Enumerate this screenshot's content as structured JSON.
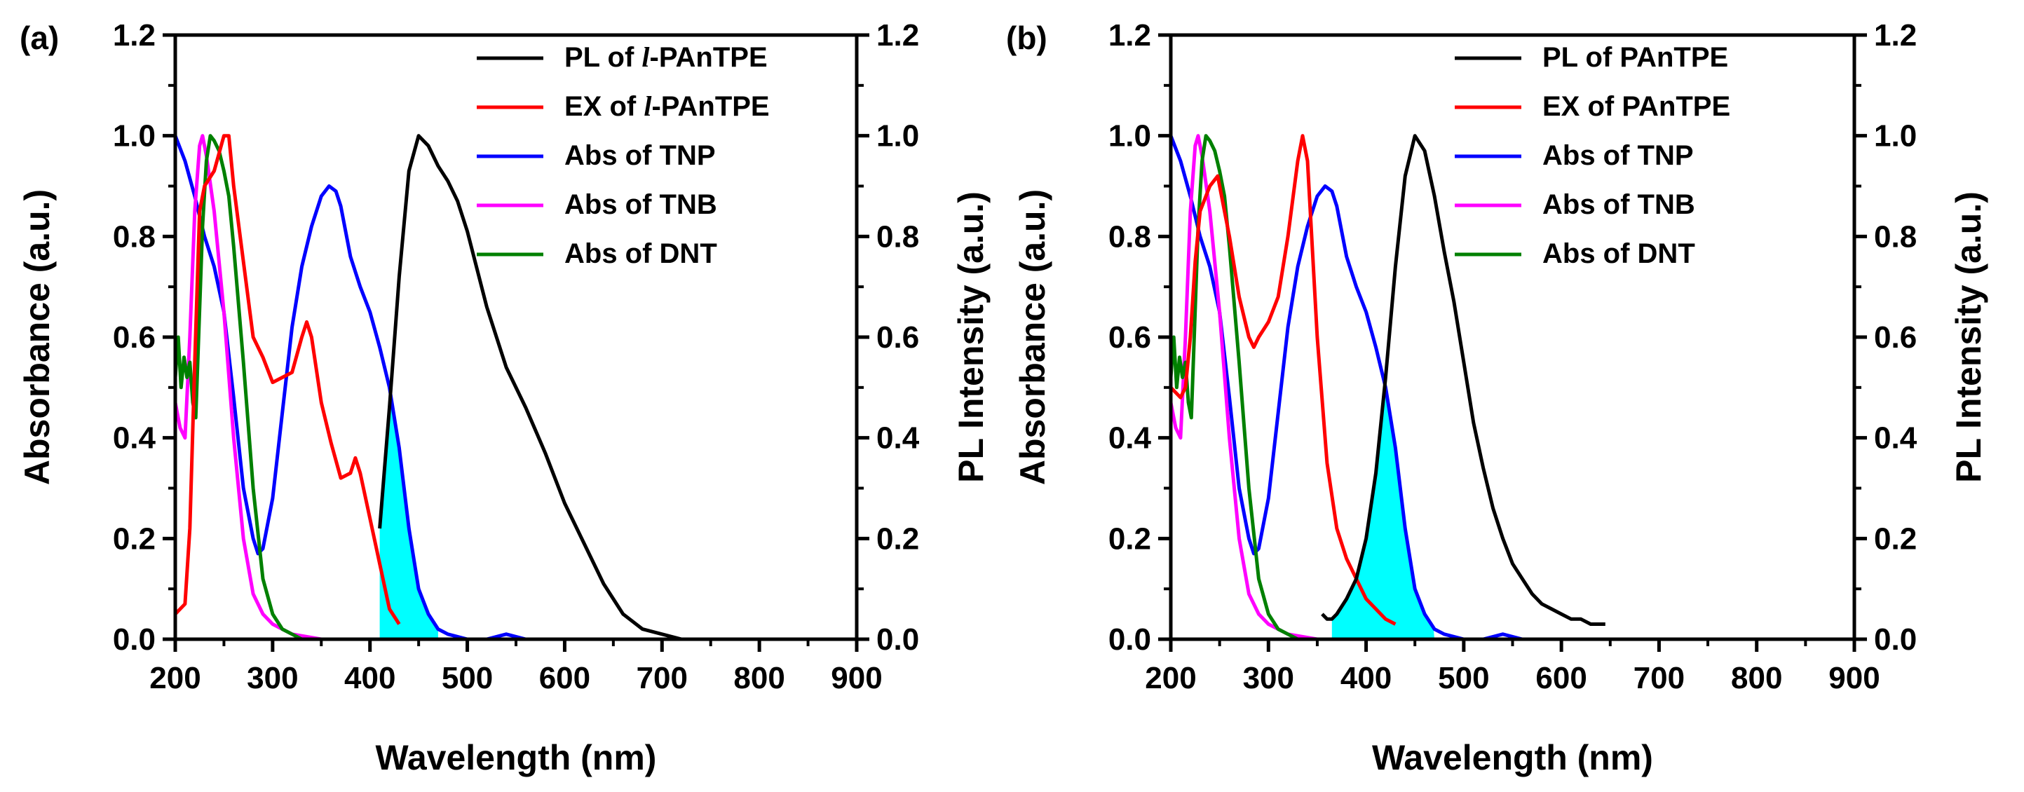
{
  "chart_data": [
    {
      "panel_label": "(a)",
      "type": "line",
      "xlabel": "Wavelength (nm)",
      "ylabel_left": "Absorbance (a.u.)",
      "ylabel_right": "PL Intensity (a.u.)",
      "xlim": [
        200,
        900
      ],
      "ylim": [
        0.0,
        1.2
      ],
      "x_ticks": [
        "200",
        "300",
        "400",
        "500",
        "600",
        "700",
        "800",
        "900"
      ],
      "y_ticks": [
        "0.0",
        "0.2",
        "0.4",
        "0.6",
        "0.8",
        "1.0",
        "1.2"
      ],
      "legend": [
        {
          "prefix": "PL of ",
          "italic": "l",
          "suffix": "-PAnTPE",
          "color": "#000000"
        },
        {
          "prefix": "EX of ",
          "italic": "l",
          "suffix": "-PAnTPE",
          "color": "#ff0000"
        },
        {
          "prefix": "Abs of TNP",
          "italic": "",
          "suffix": "",
          "color": "#0000ff"
        },
        {
          "prefix": "Abs of TNB",
          "italic": "",
          "suffix": "",
          "color": "#ff00ff"
        },
        {
          "prefix": "Abs of DNT",
          "italic": "",
          "suffix": "",
          "color": "#008000"
        }
      ],
      "overlap_fill": {
        "color": "#00ffff",
        "x_range": [
          410,
          470
        ]
      },
      "series": [
        {
          "name": "PL of l-PAnTPE",
          "color": "#000000",
          "x": [
            410,
            420,
            430,
            440,
            450,
            460,
            470,
            480,
            490,
            500,
            520,
            540,
            560,
            580,
            600,
            620,
            640,
            660,
            680,
            700,
            720
          ],
          "y": [
            0.22,
            0.46,
            0.72,
            0.93,
            1.0,
            0.98,
            0.94,
            0.91,
            0.87,
            0.81,
            0.66,
            0.54,
            0.46,
            0.37,
            0.27,
            0.19,
            0.11,
            0.05,
            0.02,
            0.01,
            0.0
          ]
        },
        {
          "name": "EX of l-PAnTPE",
          "color": "#ff0000",
          "x": [
            200,
            210,
            215,
            220,
            225,
            230,
            240,
            250,
            255,
            260,
            270,
            280,
            290,
            300,
            310,
            320,
            330,
            335,
            340,
            350,
            360,
            370,
            380,
            385,
            390,
            400,
            410,
            420,
            430
          ],
          "y": [
            0.05,
            0.07,
            0.22,
            0.55,
            0.85,
            0.9,
            0.93,
            1.0,
            1.0,
            0.9,
            0.75,
            0.6,
            0.56,
            0.51,
            0.52,
            0.53,
            0.6,
            0.63,
            0.6,
            0.47,
            0.39,
            0.32,
            0.33,
            0.36,
            0.33,
            0.24,
            0.15,
            0.06,
            0.03
          ]
        },
        {
          "name": "Abs of TNP",
          "color": "#0000ff",
          "x": [
            200,
            210,
            220,
            230,
            240,
            250,
            260,
            270,
            280,
            285,
            290,
            300,
            310,
            320,
            330,
            340,
            350,
            358,
            365,
            370,
            380,
            390,
            400,
            410,
            420,
            430,
            440,
            450,
            460,
            470,
            480,
            500,
            520,
            540,
            560
          ],
          "y": [
            1.0,
            0.95,
            0.88,
            0.8,
            0.74,
            0.65,
            0.48,
            0.3,
            0.2,
            0.17,
            0.18,
            0.28,
            0.45,
            0.62,
            0.74,
            0.82,
            0.88,
            0.9,
            0.89,
            0.86,
            0.76,
            0.7,
            0.65,
            0.58,
            0.5,
            0.38,
            0.22,
            0.1,
            0.05,
            0.02,
            0.01,
            0.0,
            0.0,
            0.01,
            0.0
          ]
        },
        {
          "name": "Abs of TNB",
          "color": "#ff00ff",
          "x": [
            200,
            205,
            210,
            215,
            220,
            225,
            228,
            232,
            240,
            250,
            260,
            270,
            280,
            290,
            300,
            320,
            350,
            380,
            400
          ],
          "y": [
            0.47,
            0.42,
            0.4,
            0.6,
            0.85,
            0.98,
            1.0,
            0.96,
            0.85,
            0.65,
            0.4,
            0.2,
            0.09,
            0.05,
            0.03,
            0.01,
            0.0,
            0.0,
            0.0
          ]
        },
        {
          "name": "Abs of DNT",
          "color": "#008000",
          "x": [
            200,
            203,
            206,
            209,
            212,
            215,
            218,
            221,
            224,
            228,
            232,
            236,
            240,
            245,
            250,
            255,
            260,
            270,
            280,
            290,
            300,
            310,
            320,
            330
          ],
          "y": [
            0.52,
            0.6,
            0.5,
            0.56,
            0.52,
            0.55,
            0.47,
            0.44,
            0.6,
            0.82,
            0.95,
            1.0,
            0.99,
            0.97,
            0.93,
            0.88,
            0.78,
            0.55,
            0.3,
            0.12,
            0.05,
            0.02,
            0.01,
            0.0
          ]
        }
      ]
    },
    {
      "panel_label": "(b)",
      "type": "line",
      "xlabel": "Wavelength (nm)",
      "ylabel_left": "Absorbance (a.u.)",
      "ylabel_right": "PL Intensity (a.u.)",
      "xlim": [
        200,
        900
      ],
      "ylim": [
        0.0,
        1.2
      ],
      "x_ticks": [
        "200",
        "300",
        "400",
        "500",
        "600",
        "700",
        "800",
        "900"
      ],
      "y_ticks": [
        "0.0",
        "0.2",
        "0.4",
        "0.6",
        "0.8",
        "1.0",
        "1.2"
      ],
      "legend": [
        {
          "prefix": "PL of PAnTPE",
          "italic": "",
          "suffix": "",
          "color": "#000000"
        },
        {
          "prefix": "EX of PAnTPE",
          "italic": "",
          "suffix": "",
          "color": "#ff0000"
        },
        {
          "prefix": "Abs of TNP",
          "italic": "",
          "suffix": "",
          "color": "#0000ff"
        },
        {
          "prefix": "Abs of TNB",
          "italic": "",
          "suffix": "",
          "color": "#ff00ff"
        },
        {
          "prefix": "Abs of DNT",
          "italic": "",
          "suffix": "",
          "color": "#008000"
        }
      ],
      "overlap_fill": {
        "color": "#00ffff",
        "x_range": [
          365,
          470
        ]
      },
      "series": [
        {
          "name": "PL of PAnTPE",
          "color": "#000000",
          "x": [
            355,
            360,
            365,
            370,
            380,
            390,
            400,
            410,
            420,
            430,
            440,
            450,
            460,
            470,
            480,
            490,
            500,
            510,
            520,
            530,
            540,
            550,
            560,
            570,
            580,
            590,
            600,
            610,
            620,
            630,
            645
          ],
          "y": [
            0.05,
            0.04,
            0.04,
            0.05,
            0.08,
            0.12,
            0.2,
            0.33,
            0.52,
            0.74,
            0.92,
            1.0,
            0.97,
            0.88,
            0.77,
            0.67,
            0.55,
            0.43,
            0.34,
            0.26,
            0.2,
            0.15,
            0.12,
            0.09,
            0.07,
            0.06,
            0.05,
            0.04,
            0.04,
            0.03,
            0.03
          ]
        },
        {
          "name": "EX of PAnTPE",
          "color": "#ff0000",
          "x": [
            200,
            210,
            215,
            220,
            225,
            230,
            240,
            248,
            255,
            260,
            270,
            280,
            285,
            290,
            300,
            310,
            320,
            330,
            335,
            340,
            350,
            360,
            370,
            380,
            390,
            400,
            410,
            420,
            430
          ],
          "y": [
            0.5,
            0.48,
            0.5,
            0.6,
            0.75,
            0.85,
            0.9,
            0.92,
            0.85,
            0.8,
            0.68,
            0.6,
            0.58,
            0.6,
            0.63,
            0.68,
            0.8,
            0.95,
            1.0,
            0.95,
            0.6,
            0.35,
            0.22,
            0.16,
            0.12,
            0.08,
            0.06,
            0.04,
            0.03
          ]
        },
        {
          "name": "Abs of TNP",
          "color": "#0000ff",
          "x": [
            200,
            210,
            220,
            230,
            240,
            250,
            260,
            270,
            280,
            285,
            290,
            300,
            310,
            320,
            330,
            340,
            350,
            358,
            365,
            370,
            380,
            390,
            400,
            410,
            420,
            430,
            440,
            450,
            460,
            470,
            480,
            500,
            520,
            540,
            560
          ],
          "y": [
            1.0,
            0.95,
            0.88,
            0.8,
            0.74,
            0.65,
            0.48,
            0.3,
            0.2,
            0.17,
            0.18,
            0.28,
            0.45,
            0.62,
            0.74,
            0.82,
            0.88,
            0.9,
            0.89,
            0.86,
            0.76,
            0.7,
            0.65,
            0.58,
            0.5,
            0.38,
            0.22,
            0.1,
            0.05,
            0.02,
            0.01,
            0.0,
            0.0,
            0.01,
            0.0
          ]
        },
        {
          "name": "Abs of TNB",
          "color": "#ff00ff",
          "x": [
            200,
            205,
            210,
            215,
            220,
            225,
            228,
            232,
            240,
            250,
            260,
            270,
            280,
            290,
            300,
            320,
            350,
            380,
            400
          ],
          "y": [
            0.47,
            0.42,
            0.4,
            0.6,
            0.85,
            0.98,
            1.0,
            0.96,
            0.85,
            0.65,
            0.4,
            0.2,
            0.09,
            0.05,
            0.03,
            0.01,
            0.0,
            0.0,
            0.0
          ]
        },
        {
          "name": "Abs of DNT",
          "color": "#008000",
          "x": [
            200,
            203,
            206,
            209,
            212,
            215,
            218,
            221,
            224,
            228,
            232,
            236,
            240,
            245,
            250,
            255,
            260,
            270,
            280,
            290,
            300,
            310,
            320,
            330
          ],
          "y": [
            0.52,
            0.6,
            0.5,
            0.56,
            0.52,
            0.55,
            0.47,
            0.44,
            0.6,
            0.82,
            0.95,
            1.0,
            0.99,
            0.97,
            0.93,
            0.88,
            0.78,
            0.55,
            0.3,
            0.12,
            0.05,
            0.02,
            0.01,
            0.0
          ]
        }
      ]
    }
  ]
}
